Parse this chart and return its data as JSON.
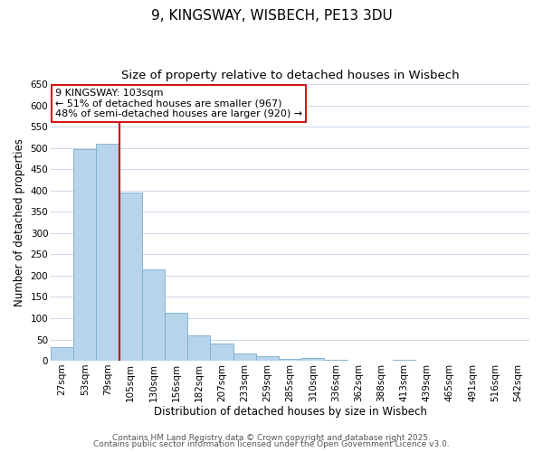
{
  "title": "9, KINGSWAY, WISBECH, PE13 3DU",
  "subtitle": "Size of property relative to detached houses in Wisbech",
  "xlabel": "Distribution of detached houses by size in Wisbech",
  "ylabel": "Number of detached properties",
  "bar_labels": [
    "27sqm",
    "53sqm",
    "79sqm",
    "105sqm",
    "130sqm",
    "156sqm",
    "182sqm",
    "207sqm",
    "233sqm",
    "259sqm",
    "285sqm",
    "310sqm",
    "336sqm",
    "362sqm",
    "388sqm",
    "413sqm",
    "439sqm",
    "465sqm",
    "491sqm",
    "516sqm",
    "542sqm"
  ],
  "bar_values": [
    33,
    498,
    510,
    395,
    215,
    113,
    60,
    40,
    17,
    10,
    5,
    7,
    2,
    1,
    1,
    3,
    0,
    0,
    0,
    0,
    1
  ],
  "bar_color": "#b8d4ea",
  "bar_edge_color": "#7aaed0",
  "vline_x": 3,
  "vline_color": "#cc0000",
  "annotation_line1": "9 KINGSWAY: 103sqm",
  "annotation_line2": "← 51% of detached houses are smaller (967)",
  "annotation_line3": "48% of semi-detached houses are larger (920) →",
  "annotation_box_color": "#ffffff",
  "annotation_box_edge": "#cc0000",
  "ylim": [
    0,
    650
  ],
  "yticks": [
    0,
    50,
    100,
    150,
    200,
    250,
    300,
    350,
    400,
    450,
    500,
    550,
    600,
    650
  ],
  "footer_line1": "Contains HM Land Registry data © Crown copyright and database right 2025.",
  "footer_line2": "Contains public sector information licensed under the Open Government Licence v3.0.",
  "background_color": "#ffffff",
  "grid_color": "#ccd8e8",
  "title_fontsize": 11,
  "subtitle_fontsize": 9.5,
  "axis_label_fontsize": 8.5,
  "tick_fontsize": 7.5,
  "annotation_fontsize": 8,
  "footer_fontsize": 6.5
}
